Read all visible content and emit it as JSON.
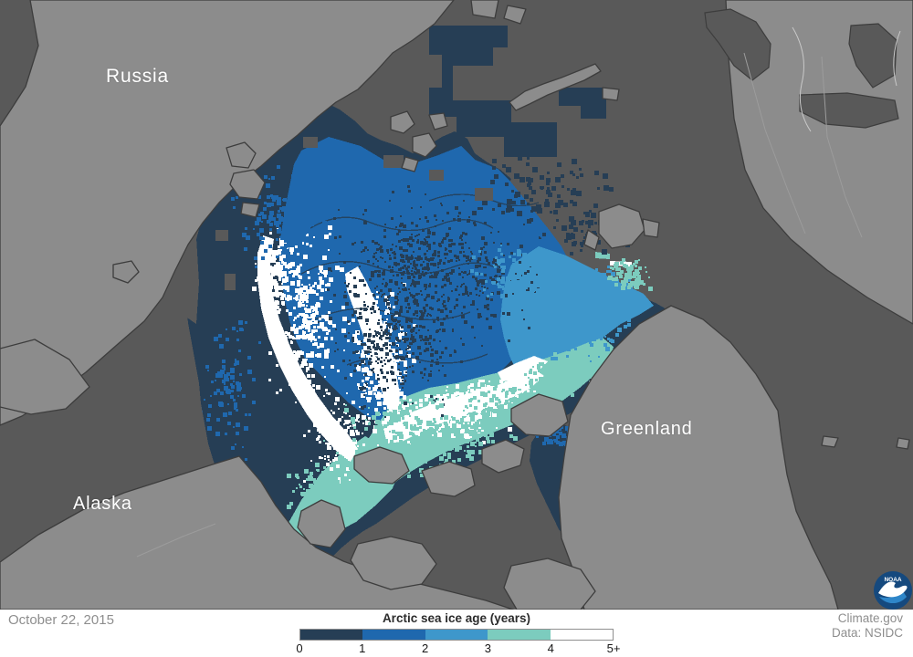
{
  "map": {
    "labels": [
      {
        "id": "russia",
        "text": "Russia"
      },
      {
        "id": "alaska",
        "text": "Alaska"
      },
      {
        "id": "greenland",
        "text": "Greenland"
      }
    ]
  },
  "legend": {
    "title": "Arctic sea ice age (years)",
    "tick_labels": [
      "0",
      "1",
      "2",
      "3",
      "4",
      "5+"
    ],
    "segments": [
      {
        "range": "0-1",
        "color": "#263e55"
      },
      {
        "range": "1-2",
        "color": "#1f68ae"
      },
      {
        "range": "2-3",
        "color": "#3e97cb"
      },
      {
        "range": "3-4",
        "color": "#7cccbe"
      },
      {
        "range": "4-5+",
        "color": "#ffffff"
      }
    ]
  },
  "footer": {
    "date": "October 22, 2015",
    "credit_line1": "Climate.gov",
    "credit_line2": "Data: NSIDC"
  },
  "logo": {
    "name": "NOAA",
    "text": "NOAA",
    "circle_color": "#15497e",
    "lower_color": "#2e86c9"
  },
  "colors": {
    "land": "#8c8c8c",
    "ocean": "#595959",
    "coastline": "#3d3d3d",
    "border_line": "#9c9c9c",
    "white_line": "#c9c9c9",
    "footer_bg": "#ffffff",
    "date_text": "#8e8e8e",
    "legend_title_text": "#2c2c2c"
  }
}
